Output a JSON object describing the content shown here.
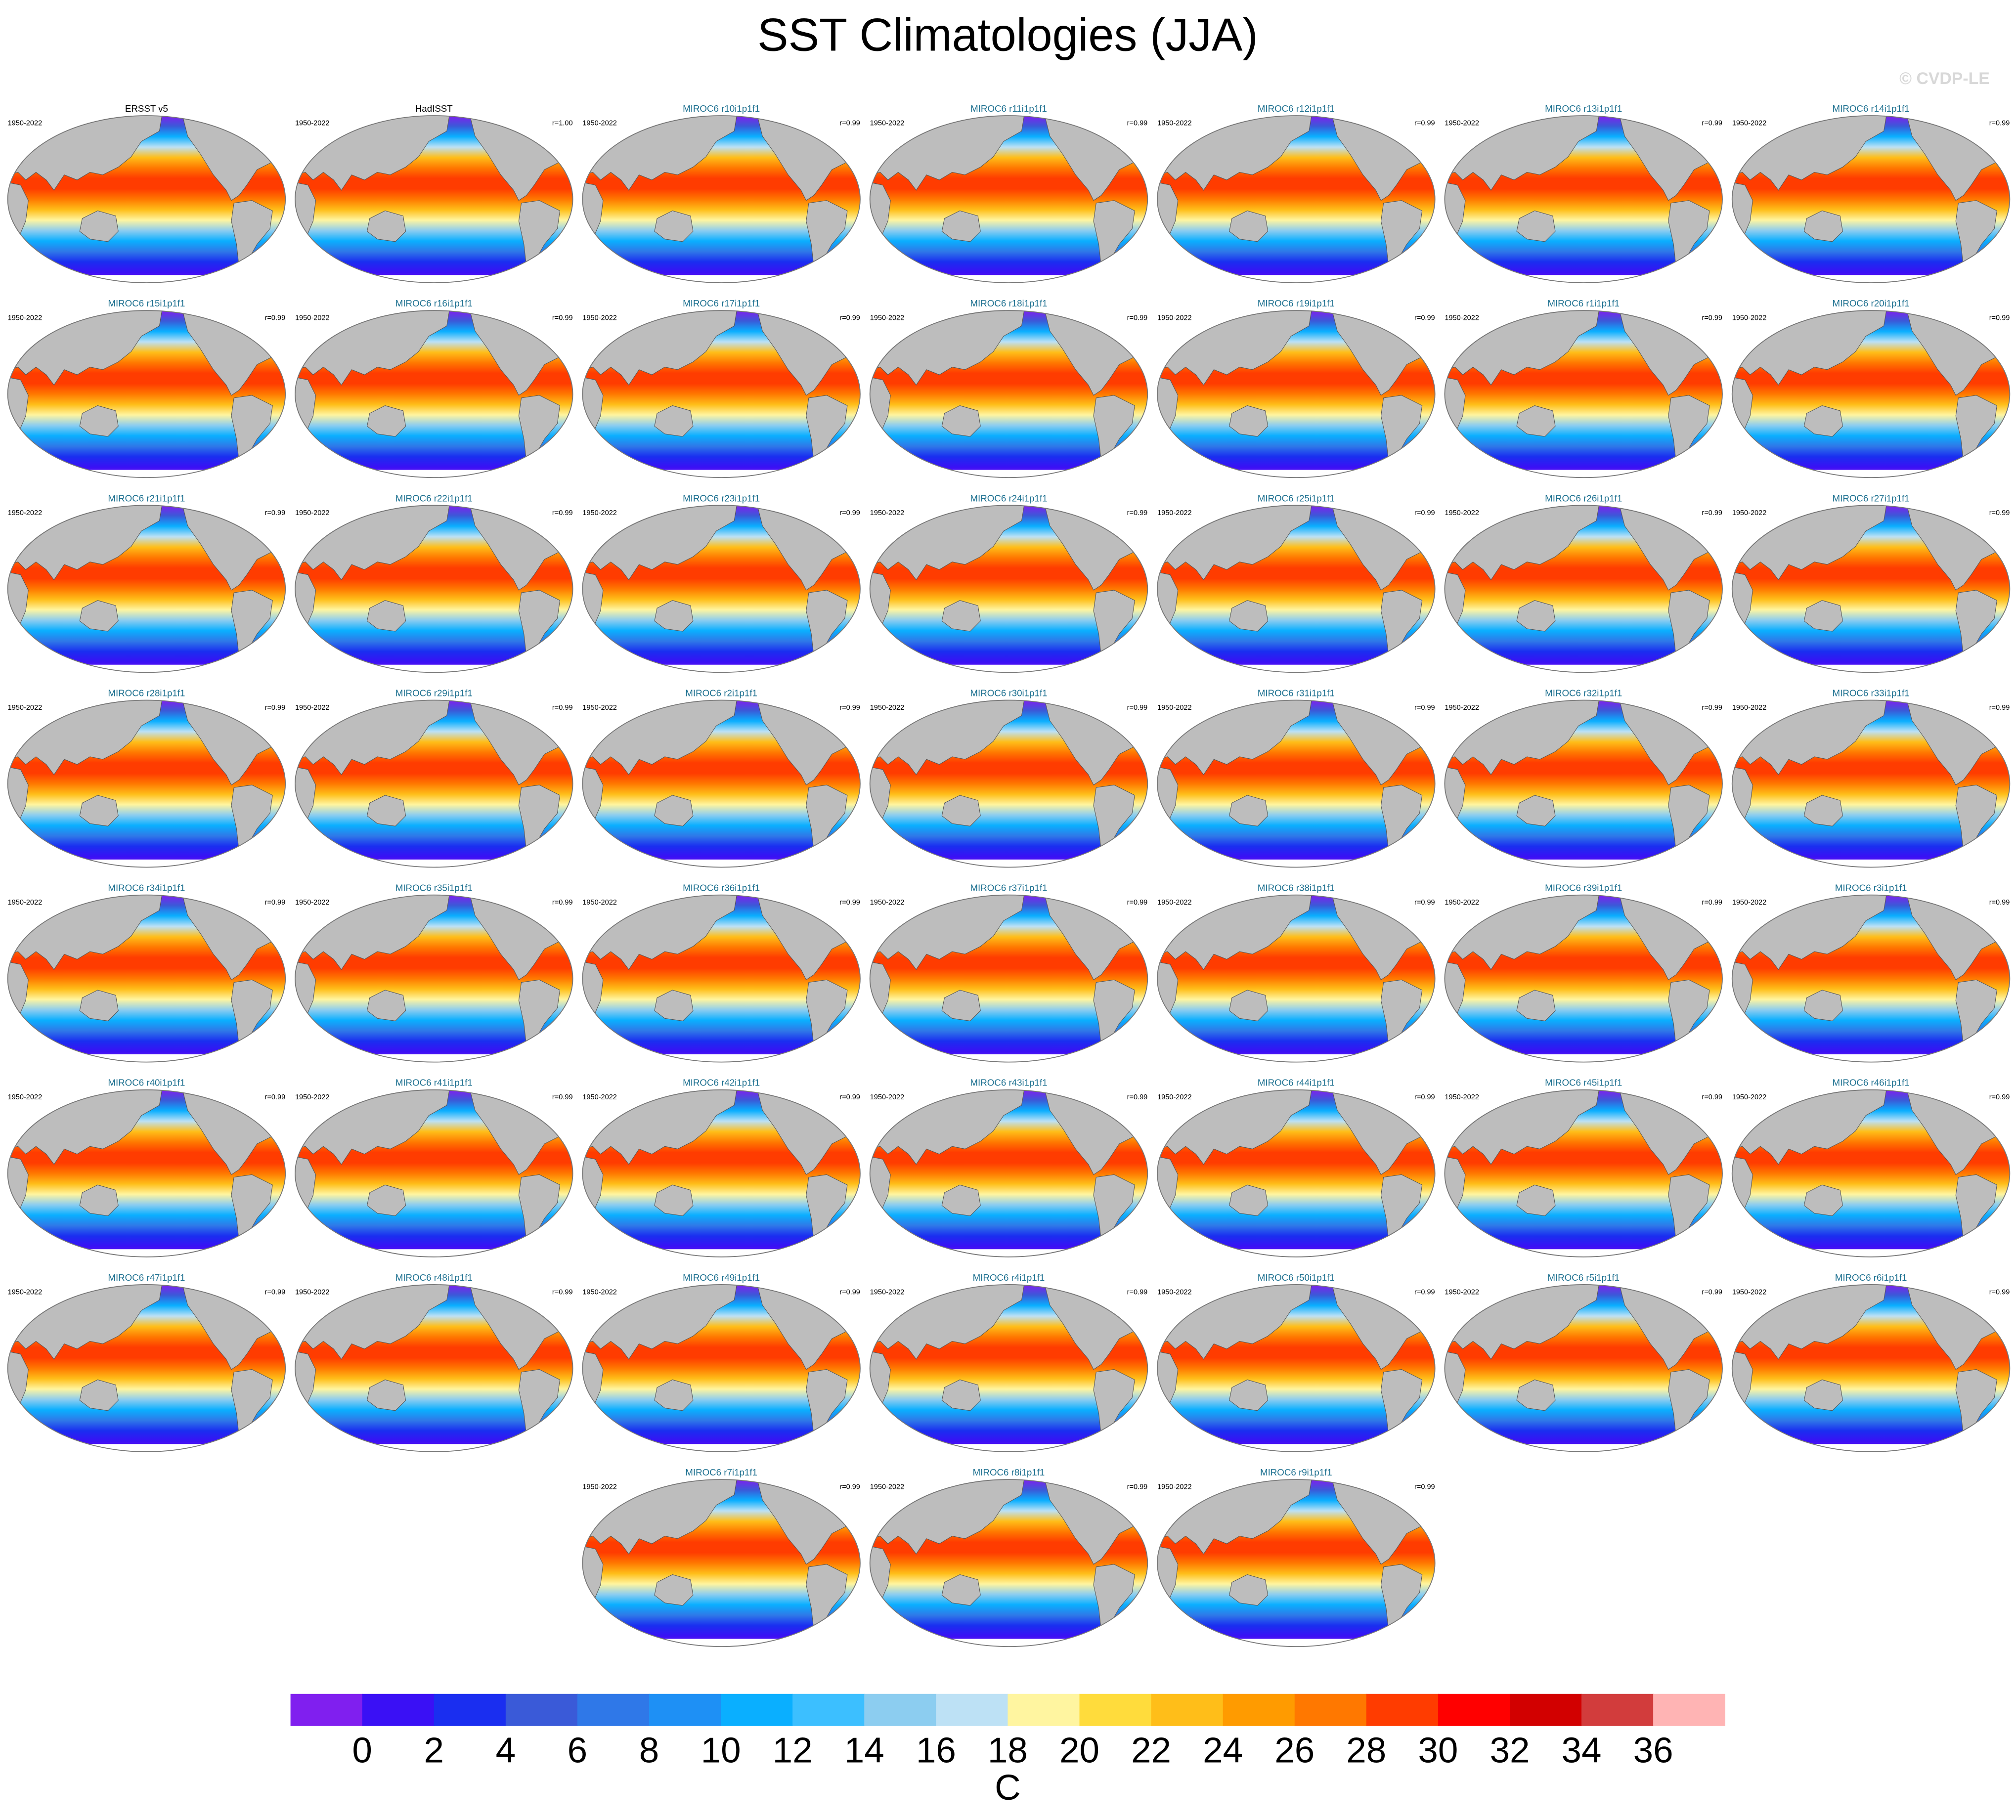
{
  "title": "SST Climatologies (JJA)",
  "copyright": "© CVDP-LE",
  "panels": [
    {
      "title": "ERSST v5",
      "period": "1950-2022",
      "color": "#000000"
    },
    {
      "title": "HadISST",
      "period": "1950-2022",
      "r": "r=1.00",
      "color": "#000000"
    },
    {
      "title": "MIROC6 r10i1p1f1",
      "period": "1950-2022",
      "r": "r=0.99",
      "color": "#1b6f8f"
    },
    {
      "title": "MIROC6 r11i1p1f1",
      "period": "1950-2022",
      "r": "r=0.99",
      "color": "#1b6f8f"
    },
    {
      "title": "MIROC6 r12i1p1f1",
      "period": "1950-2022",
      "r": "r=0.99",
      "color": "#1b6f8f"
    },
    {
      "title": "MIROC6 r13i1p1f1",
      "period": "1950-2022",
      "r": "r=0.99",
      "color": "#1b6f8f"
    },
    {
      "title": "MIROC6 r14i1p1f1",
      "period": "1950-2022",
      "r": "r=0.99",
      "color": "#1b6f8f"
    },
    {
      "title": "MIROC6 r15i1p1f1",
      "period": "1950-2022",
      "r": "r=0.99",
      "color": "#1b6f8f"
    },
    {
      "title": "MIROC6 r16i1p1f1",
      "period": "1950-2022",
      "r": "r=0.99",
      "color": "#1b6f8f"
    },
    {
      "title": "MIROC6 r17i1p1f1",
      "period": "1950-2022",
      "r": "r=0.99",
      "color": "#1b6f8f"
    },
    {
      "title": "MIROC6 r18i1p1f1",
      "period": "1950-2022",
      "r": "r=0.99",
      "color": "#1b6f8f"
    },
    {
      "title": "MIROC6 r19i1p1f1",
      "period": "1950-2022",
      "r": "r=0.99",
      "color": "#1b6f8f"
    },
    {
      "title": "MIROC6 r1i1p1f1",
      "period": "1950-2022",
      "r": "r=0.99",
      "color": "#1b6f8f"
    },
    {
      "title": "MIROC6 r20i1p1f1",
      "period": "1950-2022",
      "r": "r=0.99",
      "color": "#1b6f8f"
    },
    {
      "title": "MIROC6 r21i1p1f1",
      "period": "1950-2022",
      "r": "r=0.99",
      "color": "#1b6f8f"
    },
    {
      "title": "MIROC6 r22i1p1f1",
      "period": "1950-2022",
      "r": "r=0.99",
      "color": "#1b6f8f"
    },
    {
      "title": "MIROC6 r23i1p1f1",
      "period": "1950-2022",
      "r": "r=0.99",
      "color": "#1b6f8f"
    },
    {
      "title": "MIROC6 r24i1p1f1",
      "period": "1950-2022",
      "r": "r=0.99",
      "color": "#1b6f8f"
    },
    {
      "title": "MIROC6 r25i1p1f1",
      "period": "1950-2022",
      "r": "r=0.99",
      "color": "#1b6f8f"
    },
    {
      "title": "MIROC6 r26i1p1f1",
      "period": "1950-2022",
      "r": "r=0.99",
      "color": "#1b6f8f"
    },
    {
      "title": "MIROC6 r27i1p1f1",
      "period": "1950-2022",
      "r": "r=0.99",
      "color": "#1b6f8f"
    },
    {
      "title": "MIROC6 r28i1p1f1",
      "period": "1950-2022",
      "r": "r=0.99",
      "color": "#1b6f8f"
    },
    {
      "title": "MIROC6 r29i1p1f1",
      "period": "1950-2022",
      "r": "r=0.99",
      "color": "#1b6f8f"
    },
    {
      "title": "MIROC6 r2i1p1f1",
      "period": "1950-2022",
      "r": "r=0.99",
      "color": "#1b6f8f"
    },
    {
      "title": "MIROC6 r30i1p1f1",
      "period": "1950-2022",
      "r": "r=0.99",
      "color": "#1b6f8f"
    },
    {
      "title": "MIROC6 r31i1p1f1",
      "period": "1950-2022",
      "r": "r=0.99",
      "color": "#1b6f8f"
    },
    {
      "title": "MIROC6 r32i1p1f1",
      "period": "1950-2022",
      "r": "r=0.99",
      "color": "#1b6f8f"
    },
    {
      "title": "MIROC6 r33i1p1f1",
      "period": "1950-2022",
      "r": "r=0.99",
      "color": "#1b6f8f"
    },
    {
      "title": "MIROC6 r34i1p1f1",
      "period": "1950-2022",
      "r": "r=0.99",
      "color": "#1b6f8f"
    },
    {
      "title": "MIROC6 r35i1p1f1",
      "period": "1950-2022",
      "r": "r=0.99",
      "color": "#1b6f8f"
    },
    {
      "title": "MIROC6 r36i1p1f1",
      "period": "1950-2022",
      "r": "r=0.99",
      "color": "#1b6f8f"
    },
    {
      "title": "MIROC6 r37i1p1f1",
      "period": "1950-2022",
      "r": "r=0.99",
      "color": "#1b6f8f"
    },
    {
      "title": "MIROC6 r38i1p1f1",
      "period": "1950-2022",
      "r": "r=0.99",
      "color": "#1b6f8f"
    },
    {
      "title": "MIROC6 r39i1p1f1",
      "period": "1950-2022",
      "r": "r=0.99",
      "color": "#1b6f8f"
    },
    {
      "title": "MIROC6 r3i1p1f1",
      "period": "1950-2022",
      "r": "r=0.99",
      "color": "#1b6f8f"
    },
    {
      "title": "MIROC6 r40i1p1f1",
      "period": "1950-2022",
      "r": "r=0.99",
      "color": "#1b6f8f"
    },
    {
      "title": "MIROC6 r41i1p1f1",
      "period": "1950-2022",
      "r": "r=0.99",
      "color": "#1b6f8f"
    },
    {
      "title": "MIROC6 r42i1p1f1",
      "period": "1950-2022",
      "r": "r=0.99",
      "color": "#1b6f8f"
    },
    {
      "title": "MIROC6 r43i1p1f1",
      "period": "1950-2022",
      "r": "r=0.99",
      "color": "#1b6f8f"
    },
    {
      "title": "MIROC6 r44i1p1f1",
      "period": "1950-2022",
      "r": "r=0.99",
      "color": "#1b6f8f"
    },
    {
      "title": "MIROC6 r45i1p1f1",
      "period": "1950-2022",
      "r": "r=0.99",
      "color": "#1b6f8f"
    },
    {
      "title": "MIROC6 r46i1p1f1",
      "period": "1950-2022",
      "r": "r=0.99",
      "color": "#1b6f8f"
    },
    {
      "title": "MIROC6 r47i1p1f1",
      "period": "1950-2022",
      "r": "r=0.99",
      "color": "#1b6f8f"
    },
    {
      "title": "MIROC6 r48i1p1f1",
      "period": "1950-2022",
      "r": "r=0.99",
      "color": "#1b6f8f"
    },
    {
      "title": "MIROC6 r49i1p1f1",
      "period": "1950-2022",
      "r": "r=0.99",
      "color": "#1b6f8f"
    },
    {
      "title": "MIROC6 r4i1p1f1",
      "period": "1950-2022",
      "r": "r=0.99",
      "color": "#1b6f8f"
    },
    {
      "title": "MIROC6 r50i1p1f1",
      "period": "1950-2022",
      "r": "r=0.99",
      "color": "#1b6f8f"
    },
    {
      "title": "MIROC6 r5i1p1f1",
      "period": "1950-2022",
      "r": "r=0.99",
      "color": "#1b6f8f"
    },
    {
      "title": "MIROC6 r6i1p1f1",
      "period": "1950-2022",
      "r": "r=0.99",
      "color": "#1b6f8f"
    },
    {
      "title": "MIROC6 r7i1p1f1",
      "period": "1950-2022",
      "r": "r=0.99",
      "color": "#1b6f8f"
    },
    {
      "title": "MIROC6 r8i1p1f1",
      "period": "1950-2022",
      "r": "r=0.99",
      "color": "#1b6f8f"
    },
    {
      "title": "MIROC6 r9i1p1f1",
      "period": "1950-2022",
      "r": "r=0.99",
      "color": "#1b6f8f"
    }
  ],
  "colorbar": {
    "colors": [
      "#801fef",
      "#3a10f5",
      "#1a2ef0",
      "#3a5ad8",
      "#2f78e8",
      "#1e90f5",
      "#0aafff",
      "#3cbfff",
      "#8ccdf0",
      "#bde1f5",
      "#fff5a0",
      "#ffdc3c",
      "#ffbe19",
      "#ff9b00",
      "#ff7800",
      "#ff3c00",
      "#ff0000",
      "#d20000",
      "#d23c3c",
      "#ffb4b4"
    ],
    "ticks": [
      0,
      2,
      4,
      6,
      8,
      10,
      12,
      14,
      16,
      18,
      20,
      22,
      24,
      26,
      28,
      30,
      32,
      34,
      36
    ],
    "label": "C"
  }
}
